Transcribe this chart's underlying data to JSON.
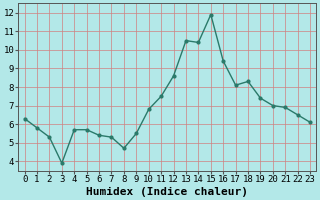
{
  "x": [
    0,
    1,
    2,
    3,
    4,
    5,
    6,
    7,
    8,
    9,
    10,
    11,
    12,
    13,
    14,
    15,
    16,
    17,
    18,
    19,
    20,
    21,
    22,
    23
  ],
  "y": [
    6.3,
    5.8,
    5.3,
    3.9,
    5.7,
    5.7,
    5.4,
    5.3,
    4.7,
    5.5,
    6.8,
    7.5,
    8.6,
    10.5,
    10.4,
    11.9,
    9.4,
    8.1,
    8.3,
    7.4,
    7.0,
    6.9,
    6.5,
    6.1
  ],
  "line_color": "#2a7a6a",
  "marker": "o",
  "marker_size": 2.0,
  "line_width": 1.0,
  "bg_color": "#b3e8e8",
  "grid_color": "#d08080",
  "xlabel": "Humidex (Indice chaleur)",
  "xlabel_fontsize": 8,
  "ylabel_ticks": [
    4,
    5,
    6,
    7,
    8,
    9,
    10,
    11,
    12
  ],
  "xlim": [
    -0.5,
    23.5
  ],
  "ylim": [
    3.5,
    12.5
  ],
  "xtick_labels": [
    "0",
    "1",
    "2",
    "3",
    "4",
    "5",
    "6",
    "7",
    "8",
    "9",
    "10",
    "11",
    "12",
    "13",
    "14",
    "15",
    "16",
    "17",
    "18",
    "19",
    "20",
    "21",
    "22",
    "23"
  ],
  "tick_fontsize": 6.5
}
